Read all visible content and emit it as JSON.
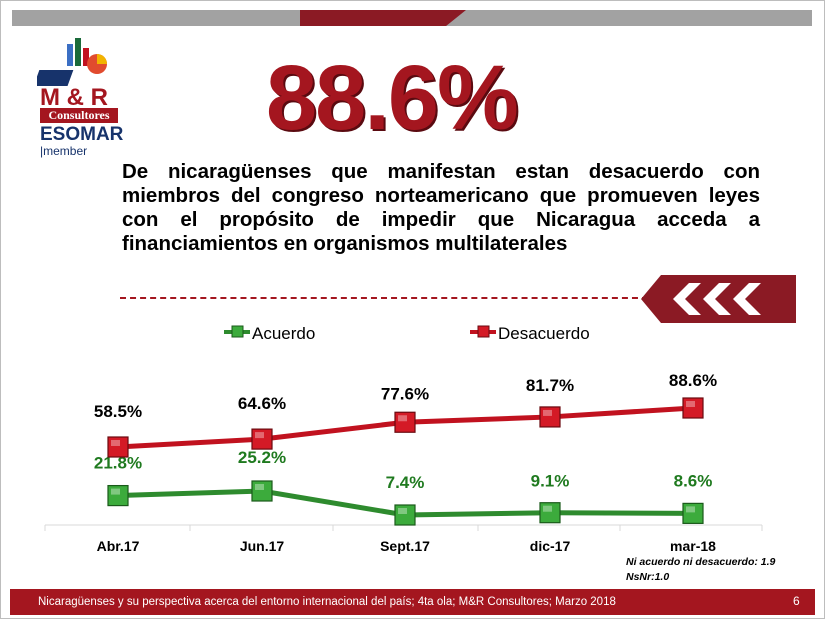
{
  "logo": {
    "brand": "M & R",
    "sub": "Consultores",
    "esomar": "ESOMAR",
    "member": "member"
  },
  "headline": "88.6%",
  "description": "De nicaragüenses que manifestan estan desacuerdo con miembros del congreso norteamericano que promueven leyes con el propósito de impedir que Nicaragua acceda a financiamientos en organismos multilaterales",
  "chart_data": {
    "type": "line",
    "categories": [
      "Abr.17",
      "Jun.17",
      "Sept.17",
      "dic-17",
      "mar-18"
    ],
    "series": [
      {
        "name": "Acuerdo",
        "values": [
          21.8,
          25.2,
          7.4,
          9.1,
          8.6
        ],
        "labels": [
          "21.8%",
          "25.2%",
          "7.4%",
          "9.1%",
          "8.6%"
        ],
        "color": "#2e8b2e",
        "marker_color": "#3cab3c",
        "label_color": "#1f7a1f"
      },
      {
        "name": "Desacuerdo",
        "values": [
          58.5,
          64.6,
          77.6,
          81.7,
          88.6
        ],
        "labels": [
          "58.5%",
          "64.6%",
          "77.6%",
          "81.7%",
          "88.6%"
        ],
        "color": "#c1121f",
        "marker_color": "#d41a26",
        "label_color": "#000000"
      }
    ],
    "legend_position": "top",
    "grid": false
  },
  "notes": [
    "Ni acuerdo ni desacuerdo: 1.9",
    "NsNr:1.0"
  ],
  "footer": {
    "text": "Nicaragüenses y su perspectiva acerca del entorno internacional del país; 4ta ola; M&R Consultores; Marzo 2018",
    "page": "6"
  },
  "colors": {
    "brand_red": "#a4161f",
    "brand_blue": "#17336b"
  }
}
